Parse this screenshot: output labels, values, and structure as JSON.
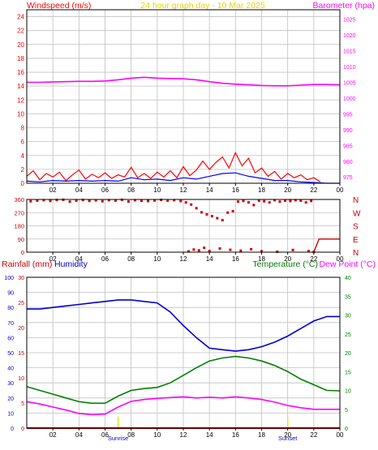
{
  "colors": {
    "frame": "#ffffff",
    "plot_bg": "#ffffff",
    "grid": "#c0c0c0",
    "axis": "#000000",
    "wind": "#ff0000",
    "wind_avg": "#0000ff",
    "barometer": "#ff00ff",
    "direction": "#cc0000",
    "rain": "#cc0000",
    "humidity": "#0000cc",
    "temperature": "#008000",
    "dewpoint": "#ff00ff",
    "title": "#e6d200",
    "sun": "#e6e600"
  },
  "chart_data": [
    {
      "type": "line",
      "title": "24 hour graph day - 10 Mar 2025",
      "left_axis_label": "Windspeed (m/s)",
      "right_axis_label": "Barometer (hpa)",
      "left_ticks": [
        "0",
        "2",
        "4",
        "6",
        "8",
        "10",
        "12",
        "14",
        "16",
        "18",
        "20",
        "22",
        "24"
      ],
      "right_ticks": [
        "975",
        "980",
        "985",
        "990",
        "995",
        "1000",
        "1005",
        "1010",
        "1015",
        "1020",
        "1025"
      ],
      "ylim_left": [
        0,
        25
      ],
      "ylim_right": [
        973,
        1028
      ],
      "x_ticks": [
        "02",
        "04",
        "06",
        "08",
        "10",
        "12",
        "14",
        "16",
        "18",
        "20",
        "22",
        "00"
      ],
      "xlim": [
        0,
        24
      ],
      "series": [
        {
          "key": "gust",
          "axis": "left",
          "color_key": "wind",
          "x": [
            0,
            0.5,
            1,
            1.5,
            2,
            2.5,
            3,
            3.5,
            4,
            4.5,
            5,
            5.5,
            6,
            6.5,
            7,
            7.5,
            8,
            8.5,
            9,
            9.5,
            10,
            10.5,
            11,
            11.5,
            12,
            12.5,
            13,
            13.5,
            14,
            14.5,
            15,
            15.5,
            16,
            16.5,
            17,
            17.5,
            18,
            18.5,
            19,
            19.5,
            20,
            20.5,
            21,
            21.5,
            22,
            22.5
          ],
          "values": [
            1.0,
            1.8,
            0.5,
            1.4,
            0.9,
            1.6,
            0.4,
            1.2,
            1.9,
            0.6,
            1.3,
            0.8,
            1.5,
            0.7,
            1.2,
            0.9,
            2.3,
            0.8,
            1.4,
            0.7,
            1.6,
            0.9,
            1.8,
            0.8,
            2.4,
            1.1,
            1.9,
            3.2,
            2.0,
            3.0,
            3.8,
            2.2,
            4.4,
            2.5,
            3.6,
            1.5,
            2.2,
            1.0,
            1.7,
            0.6,
            1.4,
            0.8,
            1.2,
            0.5,
            0.8,
            0.2
          ]
        },
        {
          "key": "average",
          "axis": "left",
          "color_key": "wind_avg",
          "x": [
            0,
            1,
            2,
            3,
            4,
            5,
            6,
            7,
            8,
            9,
            10,
            11,
            12,
            13,
            14,
            15,
            16,
            17,
            18,
            19,
            20,
            21,
            22,
            23,
            24
          ],
          "values": [
            0.3,
            0.2,
            0.4,
            0.3,
            0.4,
            0.3,
            0.4,
            0.3,
            0.8,
            0.5,
            0.6,
            0.4,
            0.8,
            0.6,
            1.0,
            1.4,
            1.5,
            1.0,
            0.7,
            0.4,
            0.4,
            0.2,
            0.1,
            0.0,
            0.0
          ]
        },
        {
          "key": "barometer",
          "axis": "right",
          "color_key": "barometer",
          "x": [
            0,
            1,
            2,
            3,
            4,
            5,
            6,
            7,
            8,
            9,
            10,
            11,
            12,
            13,
            14,
            15,
            16,
            17,
            18,
            19,
            20,
            21,
            22,
            23,
            24
          ],
          "values": [
            1005.0,
            1005.0,
            1005.1,
            1005.2,
            1005.3,
            1005.3,
            1005.4,
            1005.8,
            1006.3,
            1006.6,
            1006.3,
            1006.2,
            1006.1,
            1005.8,
            1005.2,
            1004.7,
            1004.4,
            1004.2,
            1004.0,
            1003.9,
            1003.9,
            1004.1,
            1004.3,
            1004.3,
            1004.2
          ]
        }
      ]
    },
    {
      "type": "scatter",
      "left_ticks": [
        "0",
        "90",
        "180",
        "270",
        "360"
      ],
      "right_ticks": [
        "N",
        "E",
        "S",
        "W",
        "N"
      ],
      "ylim": [
        0,
        360
      ],
      "x_ticks": [
        "02",
        "04",
        "06",
        "08",
        "10",
        "12",
        "14",
        "16",
        "18",
        "20",
        "22",
        "00"
      ],
      "xlim": [
        0,
        24
      ],
      "series": [
        {
          "key": "direction",
          "color_key": "direction",
          "x": [
            0.3,
            0.8,
            1.3,
            1.8,
            2.3,
            2.8,
            3.3,
            3.8,
            4.3,
            4.8,
            5.3,
            5.8,
            6.3,
            6.8,
            7.3,
            7.8,
            8.3,
            8.8,
            9.3,
            9.8,
            10.3,
            10.8,
            11.3,
            11.8,
            12.2,
            12.6,
            13.0,
            13.4,
            13.8,
            14.2,
            14.6,
            15.0,
            15.4,
            15.8,
            16.2,
            16.6,
            17.0,
            17.4,
            17.8,
            18.2,
            18.6,
            19.0,
            19.4,
            19.8,
            20.2,
            20.6,
            21.0,
            21.4,
            21.8,
            12.4,
            13.2,
            14.0,
            14.8,
            15.6,
            16.4,
            17.2,
            18.0,
            19.2,
            20.4,
            21.6,
            22.0,
            12.8,
            13.6
          ],
          "values": [
            348,
            352,
            355,
            350,
            356,
            358,
            345,
            352,
            356,
            350,
            354,
            348,
            355,
            352,
            358,
            346,
            355,
            351,
            349,
            353,
            357,
            352,
            355,
            349,
            340,
            325,
            300,
            272,
            258,
            246,
            232,
            218,
            270,
            280,
            345,
            350,
            340,
            322,
            352,
            348,
            340,
            355,
            345,
            352,
            349,
            355,
            352,
            340,
            350,
            5,
            12,
            8,
            25,
            16,
            10,
            20,
            6,
            3,
            15,
            7,
            2,
            18,
            30
          ]
        },
        {
          "key": "latest",
          "color_key": "direction",
          "x": [
            22,
            22.4,
            24
          ],
          "values": [
            0,
            90,
            90
          ]
        }
      ]
    },
    {
      "type": "line",
      "left_axis_label_1": "Rainfall (mm)",
      "left_axis_label_2": "Humidity",
      "right_axis_label_1": "Temperature (°C)",
      "right_axis_label_2": "Dew Point (°C)",
      "humidity_ticks": [
        "0",
        "10",
        "20",
        "30",
        "40",
        "50",
        "60",
        "70",
        "80",
        "90",
        "100"
      ],
      "rain_ticks": [
        "0",
        "5",
        "10",
        "15",
        "20",
        "25",
        "30"
      ],
      "temp_ticks": [
        "0",
        "5",
        "10",
        "15",
        "20",
        "25",
        "30",
        "35",
        "40"
      ],
      "ylim_humidity": [
        0,
        100
      ],
      "ylim_rain": [
        0,
        30
      ],
      "ylim_temp": [
        0,
        40
      ],
      "x_ticks": [
        "02",
        "04",
        "06",
        "08",
        "10",
        "12",
        "14",
        "16",
        "18",
        "20",
        "22",
        "00"
      ],
      "xlim": [
        0,
        24
      ],
      "sunrise_label": "Sunrise",
      "sunrise_x": 7.0,
      "sunset_label": "Sunset",
      "sunset_x": 20.0,
      "series": [
        {
          "key": "humidity",
          "axis": "humidity",
          "color_key": "humidity",
          "x": [
            0,
            1,
            2,
            3,
            4,
            5,
            6,
            7,
            8,
            9,
            10,
            11,
            12,
            13,
            14,
            15,
            16,
            17,
            18,
            19,
            20,
            21,
            22,
            23,
            24
          ],
          "values": [
            79,
            79,
            80,
            81,
            82,
            83,
            84,
            85,
            85,
            84,
            83,
            77,
            68,
            60,
            53,
            52,
            51,
            52,
            54,
            57,
            61,
            66,
            71,
            74,
            74
          ]
        },
        {
          "key": "temperature",
          "axis": "temp",
          "color_key": "temperature",
          "x": [
            0,
            1,
            2,
            3,
            4,
            5,
            6,
            7,
            8,
            9,
            10,
            11,
            12,
            13,
            14,
            15,
            16,
            17,
            18,
            19,
            20,
            21,
            22,
            23,
            24
          ],
          "values": [
            11.0,
            10.0,
            9.0,
            8.0,
            7.0,
            6.6,
            6.6,
            8.5,
            10.0,
            10.5,
            10.8,
            12.0,
            14.0,
            16.0,
            17.8,
            18.6,
            19.0,
            18.6,
            17.8,
            16.6,
            15.0,
            13.0,
            11.5,
            10.0,
            9.9
          ]
        },
        {
          "key": "dewpoint",
          "axis": "temp",
          "color_key": "dewpoint",
          "x": [
            0,
            1,
            2,
            3,
            4,
            5,
            6,
            7,
            8,
            9,
            10,
            11,
            12,
            13,
            14,
            15,
            16,
            17,
            18,
            19,
            20,
            21,
            22,
            23,
            24
          ],
          "values": [
            7.0,
            6.4,
            5.6,
            4.8,
            3.9,
            3.6,
            3.7,
            5.6,
            7.1,
            7.6,
            7.9,
            8.1,
            8.3,
            8.0,
            8.2,
            8.0,
            8.3,
            8.0,
            7.6,
            6.9,
            6.0,
            5.4,
            5.0,
            5.0,
            5.0
          ]
        },
        {
          "key": "rainfall",
          "axis": "rain",
          "color_key": "rain",
          "x": [
            0,
            24
          ],
          "values": [
            0,
            0
          ]
        }
      ]
    }
  ]
}
